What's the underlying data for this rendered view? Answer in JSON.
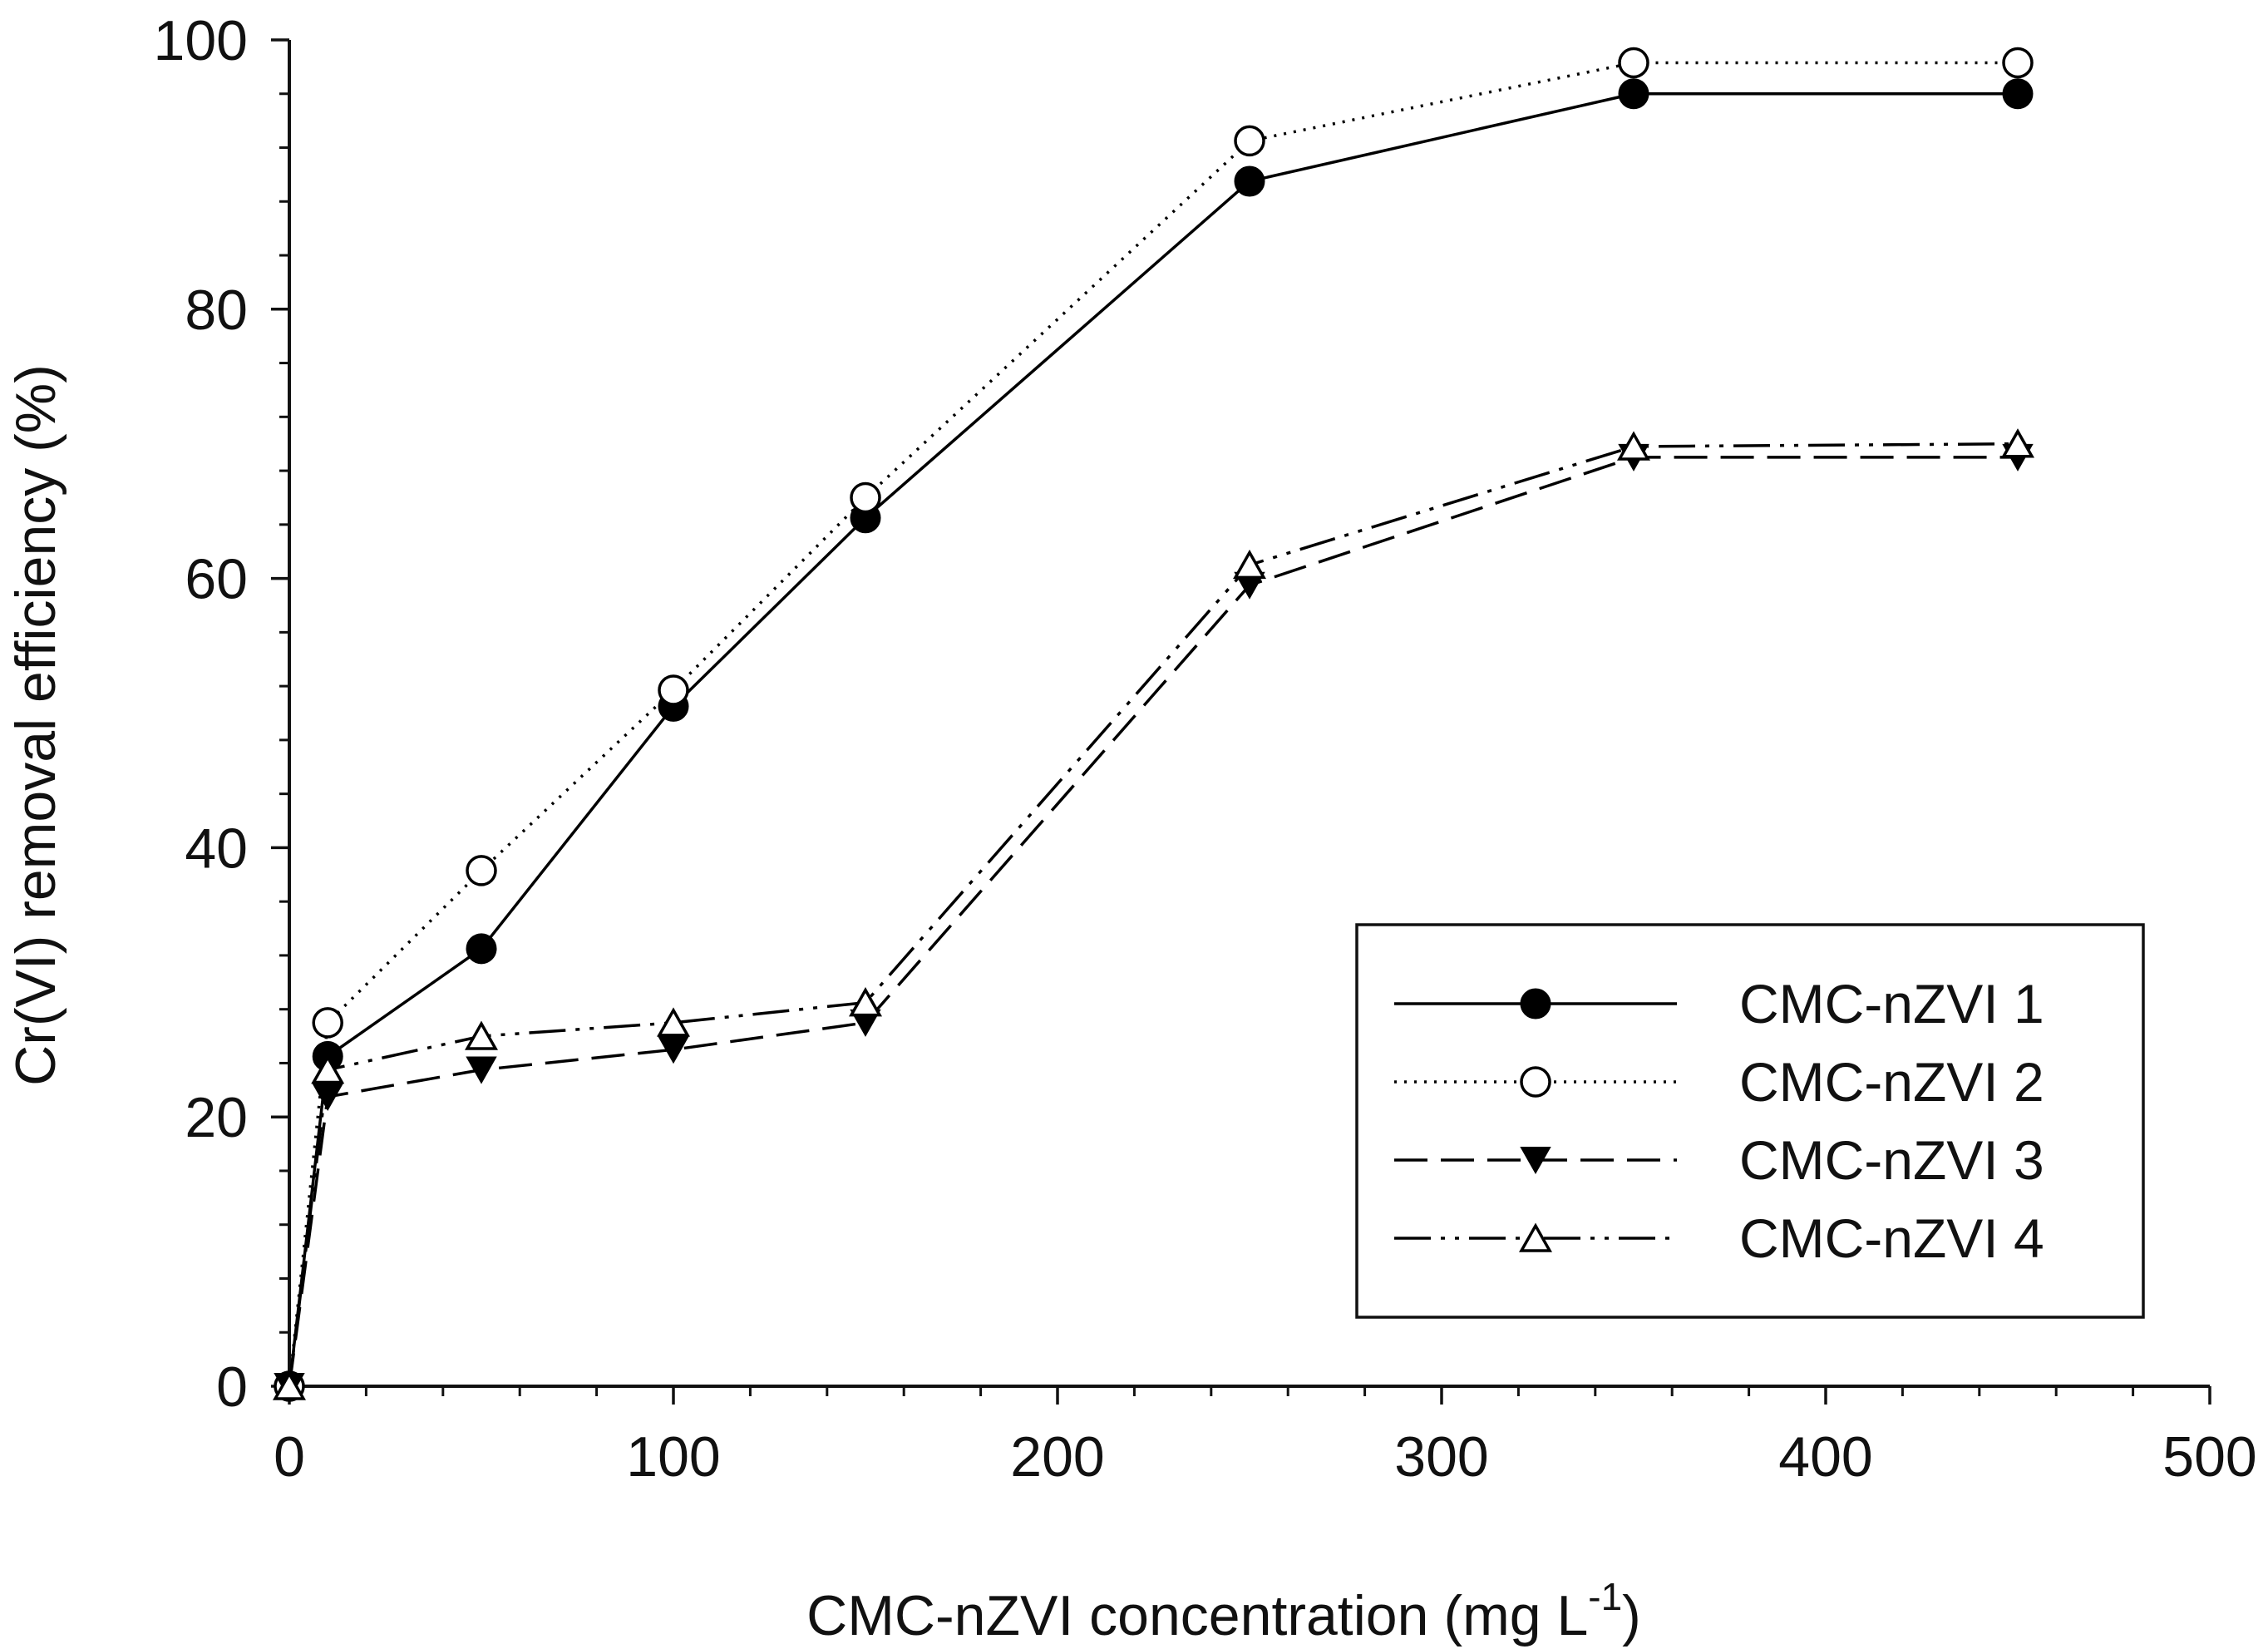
{
  "chart_data": {
    "type": "line",
    "title": "",
    "xlabel": "CMC-nZVI concentration",
    "xlabel_unit_prefix": "(mg L",
    "xlabel_unit_exp": "-1",
    "xlabel_unit_suffix": ")",
    "ylabel": "Cr(VI) removal efficiency (%)",
    "xlim": [
      0,
      500
    ],
    "ylim": [
      0,
      100
    ],
    "x_ticks": [
      0,
      100,
      200,
      300,
      400,
      500
    ],
    "y_ticks": [
      0,
      20,
      40,
      60,
      80,
      100
    ],
    "x_tick_labels": [
      "0",
      "100",
      "200",
      "300",
      "400",
      "500"
    ],
    "y_tick_labels": [
      "0",
      "20",
      "40",
      "60",
      "80",
      "100"
    ],
    "x_minor_step": 20,
    "y_minor_step": 4,
    "grid": false,
    "legend_position": "bottom-right",
    "x": [
      0,
      10,
      50,
      100,
      150,
      250,
      350,
      450
    ],
    "series": [
      {
        "name": "CMC-nZVI 1",
        "marker": "filled-circle",
        "line": "solid",
        "color": "#000000",
        "values": [
          0,
          24.5,
          32.5,
          50.5,
          64.5,
          89.5,
          96,
          96
        ]
      },
      {
        "name": "CMC-nZVI 2",
        "marker": "open-circle",
        "line": "dotted",
        "color": "#000000",
        "values": [
          0,
          27,
          38.3,
          51.7,
          66,
          92.5,
          98.3,
          98.3
        ]
      },
      {
        "name": "CMC-nZVI 3",
        "marker": "filled-triangle-down",
        "line": "dashed",
        "color": "#000000",
        "values": [
          0,
          21.5,
          23.5,
          25,
          27,
          59.5,
          69,
          69
        ]
      },
      {
        "name": "CMC-nZVI 4",
        "marker": "open-triangle-up",
        "line": "dash-dot-dot",
        "color": "#000000",
        "values": [
          0,
          23.5,
          26,
          27,
          28.5,
          61,
          69.8,
          70
        ]
      }
    ]
  }
}
